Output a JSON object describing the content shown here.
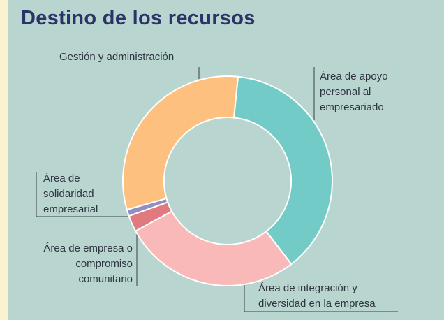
{
  "chart_data": {
    "type": "donut",
    "title": "Destino de los recursos",
    "categories": [
      "Área de apoyo personal al empresariado",
      "Área de integración y diversidad en la empresa",
      "Área de empresa o compromiso comunitario",
      "Área de solidaridad empresarial",
      "Gestión y administración"
    ],
    "values": [
      38,
      27.5,
      2.5,
      1,
      31
    ],
    "colors": [
      "#72cbc7",
      "#f9b9b9",
      "#e07a7f",
      "#8f8fc4",
      "#fdc07e"
    ]
  }
}
